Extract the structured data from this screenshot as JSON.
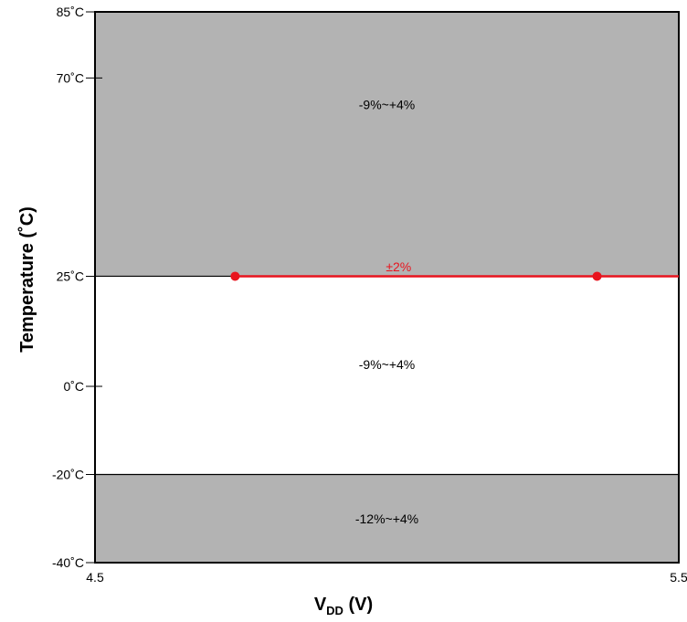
{
  "chart_data": {
    "type": "area",
    "xlabel": "V",
    "xlabel_subscript": "DD",
    "xlabel_unit": " (V)",
    "ylabel": "Temperature (˚C)",
    "xlim": [
      4.5,
      5.5
    ],
    "ylim": [
      -40,
      85
    ],
    "x_ticks": [
      {
        "value": 4.5,
        "label": "4.5"
      },
      {
        "value": 5.5,
        "label": "5.5"
      }
    ],
    "y_ticks": [
      {
        "value": 85,
        "label": "85˚C"
      },
      {
        "value": 70,
        "label": "70˚C"
      },
      {
        "value": 25,
        "label": "25˚C"
      },
      {
        "value": 0,
        "label": "0˚C"
      },
      {
        "value": -20,
        "label": "-20˚C"
      },
      {
        "value": -40,
        "label": "-40˚C"
      }
    ],
    "regions": [
      {
        "name": "upper",
        "y_from": 25,
        "y_to": 85,
        "fill": "#b3b3b3",
        "label": "-9%~+4%",
        "label_x": 5.0,
        "label_y": 64
      },
      {
        "name": "middle",
        "y_from": -20,
        "y_to": 25,
        "fill": "#ffffff",
        "label": "-9%~+4%",
        "label_x": 5.0,
        "label_y": 5
      },
      {
        "name": "lower",
        "y_from": -40,
        "y_to": -20,
        "fill": "#b3b3b3",
        "label": "-12%~+4%",
        "label_x": 5.0,
        "label_y": -30
      }
    ],
    "highlight": {
      "label": "±2%",
      "color": "#e8141e",
      "y": 25,
      "x_from": 4.74,
      "x_to": 5.5,
      "points": [
        {
          "x": 4.74,
          "y": 25
        },
        {
          "x": 5.36,
          "y": 25
        }
      ],
      "label_x": 5.02,
      "label_y": 27
    }
  }
}
